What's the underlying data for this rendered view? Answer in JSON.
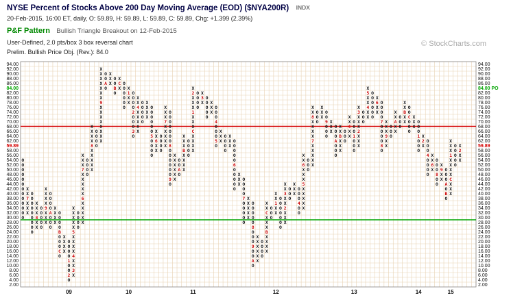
{
  "header": {
    "title": "NYSE Percent of Stocks Above 200 Day Moving Average (EOD) ($NYA200R)",
    "symbol_type": "INDX",
    "quote_line": "20-Feb-2015, 16:00 ET, daily, O: 59.89, H: 59.89, L: 59.89, C: 59.89, Chg: +1.399 (2.39%)",
    "pattern_label": "P&F Pattern",
    "pattern_text": "Bullish Triangle Breakout on 12-Feb-2015",
    "settings_line": "User-Defined, 2.0 pts/box 3 box reversal chart",
    "objective_line": "Prelim. Bullish Price Obj. (Rev.): 84.0",
    "copyright": "© StockCharts.com"
  },
  "colors": {
    "title": "#000044",
    "pattern_green": "#008800",
    "marker_red": "#cc0000",
    "line_red": "#d40000",
    "line_green": "#00a400",
    "grid": "#e8d2b4",
    "glyph": "#111111",
    "axis_text": "#111111",
    "muted": "#aaaaaa"
  },
  "chart_data": {
    "type": "point-and-figure",
    "title": "NYSE Percent of Stocks Above 200 Day Moving Average (EOD) ($NYA200R)",
    "y_min": 2,
    "y_max": 94,
    "box_size": 2,
    "reversal": 3,
    "grid": true,
    "last_close": 59.89,
    "price_objective": 84.0,
    "resistance_line": {
      "value": 68,
      "color": "#d40000"
    },
    "support_line": {
      "value": 29,
      "color": "#00a400"
    },
    "y_ticks": [
      94,
      92,
      90,
      88,
      86,
      84,
      82,
      80,
      78,
      76,
      74,
      72,
      70,
      68,
      66,
      64,
      62,
      60,
      58,
      56,
      54,
      52,
      50,
      48,
      46,
      44,
      42,
      40,
      38,
      36,
      34,
      32,
      30,
      28,
      26,
      24,
      22,
      20,
      18,
      16,
      14,
      12,
      10,
      8,
      6,
      4,
      2
    ],
    "left_label_overrides": {
      "84": {
        "text": "84.00",
        "color": "#00a400"
      },
      "60": {
        "text": "59.89",
        "color": "#d40000"
      }
    },
    "right_label_overrides": {
      "84": {
        "text": "84.00 PO",
        "color": "#00a400"
      },
      "60": {
        "text": "59.89",
        "color": "#d40000"
      }
    },
    "years": [
      {
        "label": "09",
        "col": 11
      },
      {
        "label": "10",
        "col": 24
      },
      {
        "label": "11",
        "col": 38
      },
      {
        "label": "12",
        "col": 56
      },
      {
        "label": "13",
        "col": 73
      },
      {
        "label": "14",
        "col": 87
      },
      {
        "label": "15",
        "col": 94
      }
    ],
    "empty_trailing_columns": 3,
    "columns": [
      [
        "O",
        30,
        54,
        null
      ],
      [
        "X",
        32,
        42,
        {
          "38": "7"
        }
      ],
      [
        "O",
        24,
        40,
        null
      ],
      [
        "X",
        26,
        36,
        {
          "30": "8"
        }
      ],
      [
        "O",
        26,
        34,
        null
      ],
      [
        "X",
        28,
        42,
        {
          "34": "9"
        }
      ],
      [
        "O",
        26,
        40,
        {
          "32": "A"
        }
      ],
      [
        "X",
        28,
        34,
        null
      ],
      [
        "O",
        14,
        32,
        {
          "24": "B",
          "16": "C"
        }
      ],
      [
        "X",
        16,
        22,
        null
      ],
      [
        "O",
        4,
        20,
        {
          "12": "1",
          "6": "2"
        }
      ],
      [
        "X",
        6,
        34,
        {
          "8": "3",
          "14": "4",
          "24": "5"
        }
      ],
      [
        "O",
        26,
        32,
        null
      ],
      [
        "X",
        28,
        56,
        {
          "38": "6",
          "50": "7"
        }
      ],
      [
        "O",
        48,
        54,
        null
      ],
      [
        "X",
        50,
        68,
        {
          "60": "8"
        }
      ],
      [
        "O",
        60,
        66,
        null
      ],
      [
        "X",
        62,
        92,
        {
          "78": "9"
        }
      ],
      [
        "O",
        84,
        90,
        {
          "86": "A"
        }
      ],
      [
        "X",
        86,
        90,
        null
      ],
      [
        "O",
        82,
        88,
        {
          "84": "B"
        }
      ],
      [
        "X",
        84,
        88,
        {
          "86": "C"
        }
      ],
      [
        "O",
        76,
        86,
        null
      ],
      [
        "X",
        78,
        84,
        {
          "82": "1"
        }
      ],
      [
        "O",
        64,
        82,
        {
          "74": "2",
          "66": "3"
        }
      ],
      [
        "X",
        66,
        80,
        {
          "76": "4"
        }
      ],
      [
        "O",
        70,
        78,
        null
      ],
      [
        "X",
        72,
        78,
        null
      ],
      [
        "O",
        56,
        76,
        {
          "64": "5"
        }
      ],
      [
        "X",
        58,
        66,
        {
          "62": "6"
        }
      ],
      [
        "O",
        58,
        64,
        null
      ],
      [
        "X",
        60,
        76,
        {
          "70": "7"
        }
      ],
      [
        "O",
        44,
        74,
        {
          "60": "8",
          "46": "9"
        }
      ],
      [
        "X",
        46,
        56,
        null
      ],
      [
        "O",
        48,
        54,
        {
          "50": "A"
        }
      ],
      [
        "X",
        50,
        64,
        {
          "58": "B"
        }
      ],
      [
        "O",
        56,
        62,
        null
      ],
      [
        "X",
        58,
        84,
        {
          "66": "C",
          "74": "1",
          "82": "2"
        }
      ],
      [
        "O",
        76,
        82,
        null
      ],
      [
        "X",
        78,
        82,
        {
          "80": "3"
        }
      ],
      [
        "O",
        72,
        80,
        null
      ],
      [
        "X",
        74,
        78,
        null
      ],
      [
        "O",
        60,
        76,
        {
          "70": "4",
          "62": "5"
        }
      ],
      [
        "X",
        62,
        66,
        null
      ],
      [
        "O",
        58,
        64,
        null
      ],
      [
        "X",
        60,
        64,
        null
      ],
      [
        "O",
        42,
        62,
        {
          "52": "6"
        }
      ],
      [
        "X",
        44,
        48,
        null
      ],
      [
        "O",
        28,
        46,
        {
          "38": "7"
        }
      ],
      [
        "X",
        30,
        38,
        null
      ],
      [
        "O",
        10,
        36,
        {
          "26": "8",
          "18": "9",
          "12": "A"
        }
      ],
      [
        "X",
        12,
        22,
        null
      ],
      [
        "O",
        14,
        20,
        null
      ],
      [
        "X",
        16,
        36,
        {
          "24": "B",
          "32": "C"
        }
      ],
      [
        "O",
        30,
        34,
        null
      ],
      [
        "X",
        32,
        40,
        {
          "36": "1"
        }
      ],
      [
        "O",
        26,
        38,
        null
      ],
      [
        "X",
        28,
        44,
        {
          "34": "2",
          "40": "3"
        }
      ],
      [
        "O",
        38,
        42,
        null
      ],
      [
        "X",
        40,
        44,
        null
      ],
      [
        "O",
        32,
        42,
        {
          "36": "4"
        }
      ],
      [
        "X",
        34,
        56,
        {
          "44": "5",
          "52": "6"
        }
      ],
      [
        "O",
        50,
        54,
        null
      ],
      [
        "X",
        52,
        76,
        {
          "62": "7",
          "72": "8"
        }
      ],
      [
        "O",
        70,
        74,
        null
      ],
      [
        "X",
        72,
        76,
        null
      ],
      [
        "O",
        64,
        74,
        {
          "70": "9"
        }
      ],
      [
        "X",
        66,
        70,
        null
      ],
      [
        "O",
        56,
        68,
        {
          "62": "A"
        }
      ],
      [
        "X",
        58,
        68,
        {
          "64": "B"
        }
      ],
      [
        "O",
        62,
        66,
        null
      ],
      [
        "X",
        64,
        72,
        {
          "68": "C"
        }
      ],
      [
        "O",
        58,
        70,
        {
          "64": "1"
        }
      ],
      [
        "X",
        60,
        76,
        {
          "66": "2",
          "74": "3"
        }
      ],
      [
        "O",
        70,
        74,
        null
      ],
      [
        "X",
        72,
        84,
        {
          "76": "4",
          "82": "5"
        }
      ],
      [
        "O",
        72,
        82,
        null
      ],
      [
        "X",
        74,
        80,
        {
          "78": "6"
        }
      ],
      [
        "O",
        58,
        78,
        {
          "70": "7",
          "60": "8"
        }
      ],
      [
        "X",
        60,
        70,
        {
          "64": "9"
        }
      ],
      [
        "O",
        64,
        68,
        null
      ],
      [
        "X",
        66,
        74,
        {
          "70": "A"
        }
      ],
      [
        "O",
        68,
        72,
        null
      ],
      [
        "X",
        70,
        78,
        {
          "74": "B"
        }
      ],
      [
        "O",
        66,
        76,
        {
          "72": "C"
        }
      ],
      [
        "X",
        68,
        72,
        null
      ],
      [
        "O",
        58,
        70,
        {
          "64": "1"
        }
      ],
      [
        "X",
        60,
        64,
        {
          "62": "2"
        }
      ],
      [
        "O",
        48,
        62,
        {
          "56": "4"
        }
      ],
      [
        "X",
        50,
        56,
        {
          "52": "6"
        }
      ],
      [
        "O",
        44,
        54,
        {
          "48": "8"
        }
      ],
      [
        "X",
        46,
        52,
        {
          "50": "9"
        }
      ],
      [
        "O",
        38,
        50,
        {
          "44": "A",
          "40": "B"
        }
      ],
      [
        "X",
        40,
        62,
        {
          "46": "C",
          "56": "1"
        }
      ],
      [
        "O",
        52,
        60,
        null
      ],
      [
        "X",
        54,
        60,
        {
          "58": "2"
        }
      ]
    ]
  }
}
